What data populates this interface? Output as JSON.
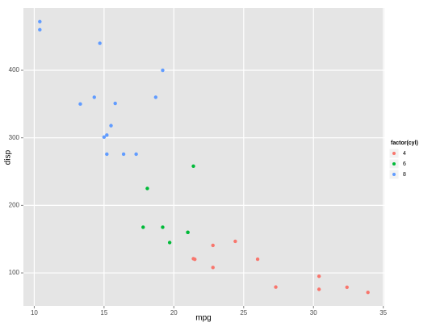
{
  "chart_data": {
    "type": "scatter",
    "x_label": "mpg",
    "y_label": "disp",
    "legend_title": "factor(cyl)",
    "legend": "right",
    "grid": true,
    "xlim": [
      9.225,
      35.075
    ],
    "ylim": [
      51.055,
      492.045
    ],
    "xticks": [
      10,
      15,
      20,
      25,
      30,
      35
    ],
    "yticks": [
      100,
      200,
      300,
      400
    ],
    "series": [
      {
        "name": "4",
        "color": "#F8766D",
        "x": [
          22.8,
          24.4,
          22.8,
          32.4,
          30.4,
          33.9,
          21.5,
          27.3,
          26,
          30.4,
          21.4
        ],
        "y": [
          108,
          146.7,
          140.8,
          78.7,
          75.7,
          71.1,
          120.1,
          79,
          120.3,
          95.1,
          121
        ]
      },
      {
        "name": "6",
        "color": "#00BA38",
        "x": [
          21,
          21,
          21.4,
          18.1,
          19.2,
          17.8,
          19.7
        ],
        "y": [
          160,
          160,
          258,
          225,
          167.6,
          167.6,
          145
        ]
      },
      {
        "name": "8",
        "color": "#619CFF",
        "x": [
          18.7,
          14.3,
          16.4,
          17.3,
          15.2,
          10.4,
          10.4,
          14.7,
          15.5,
          15.2,
          13.3,
          19.2,
          15.8,
          15
        ],
        "y": [
          360,
          360,
          275.8,
          275.8,
          275.8,
          472,
          460,
          440,
          318,
          304,
          350,
          400,
          351,
          301
        ]
      }
    ]
  }
}
